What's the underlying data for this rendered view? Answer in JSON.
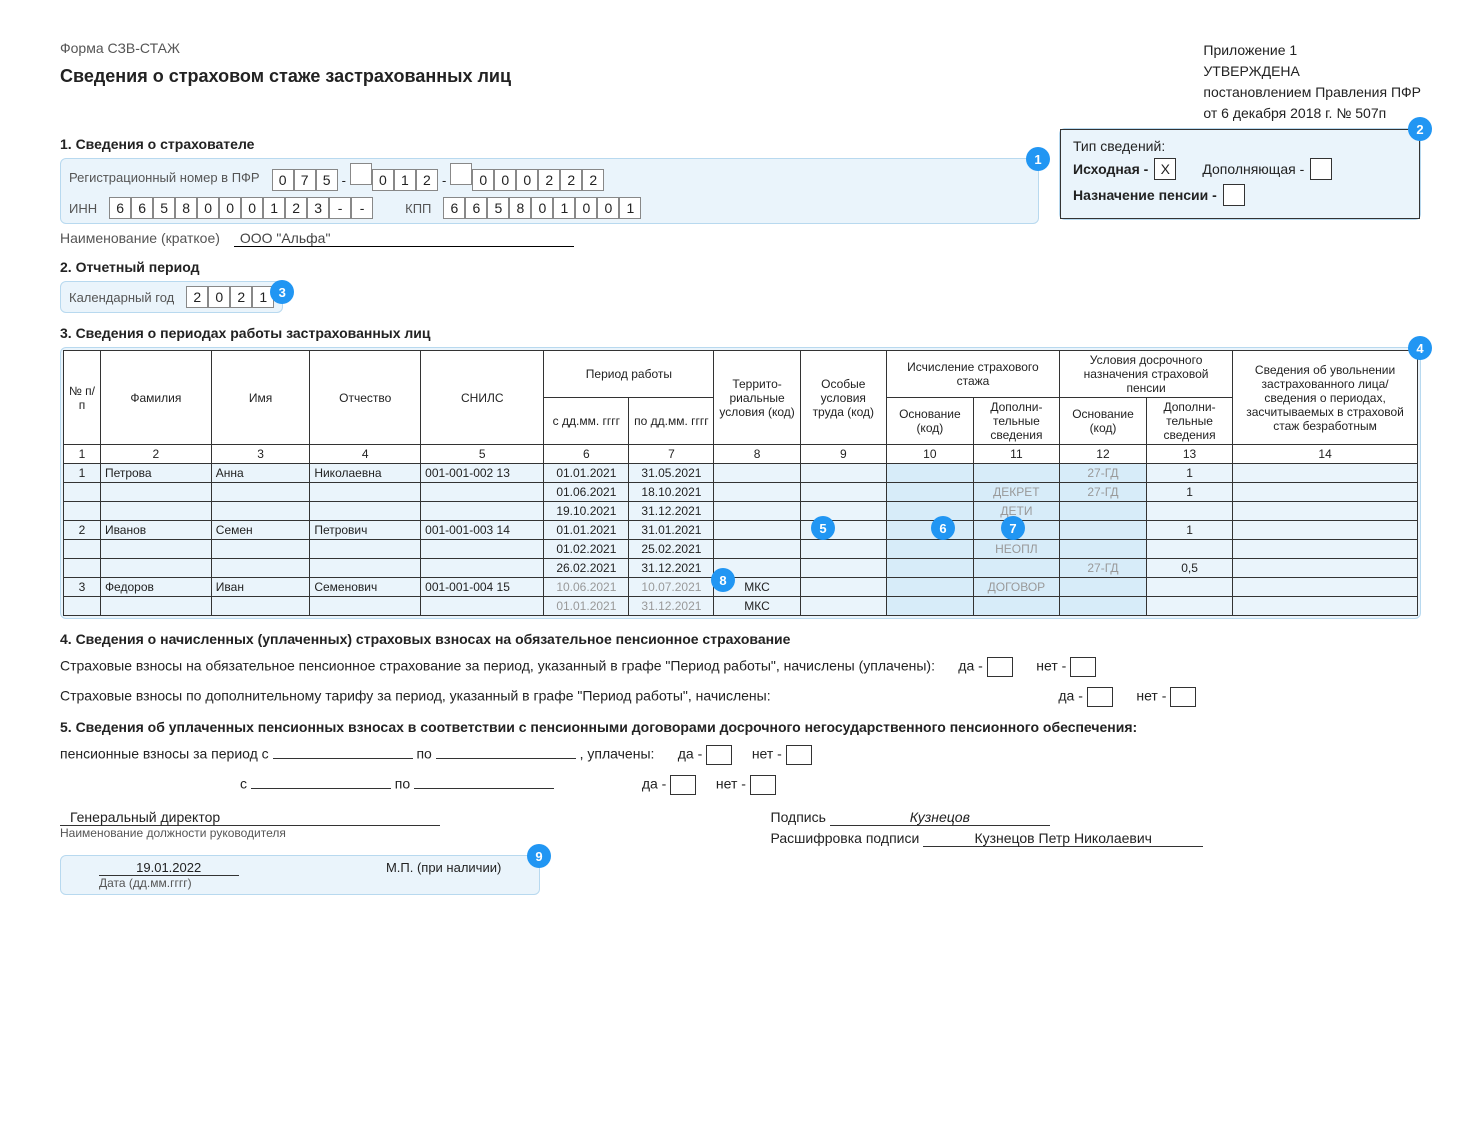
{
  "form_code": "Форма СЗВ-СТАЖ",
  "title": "Сведения о страховом стаже застрахованных лиц",
  "approval": {
    "appendix": "Приложение 1",
    "approved": "УТВЕРЖДЕНА",
    "by": "постановлением Правления ПФР",
    "date": "от 6 декабря 2018 г. № 507п"
  },
  "section1": {
    "title": "1. Сведения о страхователе",
    "reg_label": "Регистрационный номер в ПФР",
    "reg_digits": [
      "0",
      "7",
      "5",
      "",
      "0",
      "1",
      "2",
      "",
      "0",
      "0",
      "0",
      "2",
      "2",
      "2"
    ],
    "inn_label": "ИНН",
    "inn_digits": [
      "6",
      "6",
      "5",
      "8",
      "0",
      "0",
      "0",
      "1",
      "2",
      "3",
      "-",
      "-"
    ],
    "kpp_label": "КПП",
    "kpp_digits": [
      "6",
      "6",
      "5",
      "8",
      "0",
      "1",
      "0",
      "0",
      "1"
    ],
    "org_label": "Наименование (краткое)",
    "org_name": "ООО \"Альфа\""
  },
  "type_box": {
    "title": "Тип сведений:",
    "initial_label": "Исходная -",
    "initial_check": "X",
    "supplement_label": "Дополняющая -",
    "supplement_check": "",
    "pension_label": "Назначение пенсии -",
    "pension_check": ""
  },
  "section2": {
    "title": "2. Отчетный период",
    "year_label": "Календарный год",
    "year_digits": [
      "2",
      "0",
      "2",
      "1"
    ]
  },
  "section3": {
    "title": "3. Сведения о периодах работы застрахованных лиц",
    "headers": {
      "num": "№\nп/п",
      "surname": "Фамилия",
      "name": "Имя",
      "patronymic": "Отчество",
      "snils": "СНИЛС",
      "period": "Период работы",
      "from": "с дд.мм.\nгггг",
      "to": "по дд.мм.\nгггг",
      "terr": "Террито-\nриальные\nусловия\n(код)",
      "labor": "Особые\nусловия\nтруда (код)",
      "calc": "Исчисление страхового\nстажа",
      "basis": "Основание\n(код)",
      "extra": "Дополни-\nтельные\nсведения",
      "early": "Условия досрочного\nназначения страховой пенсии",
      "dismissal": "Сведения об увольнении\nзастрахованного лица/\nсведения о периодах,\nзасчитываемых\nв страховой стаж\nбезработным"
    },
    "colnums": [
      "1",
      "2",
      "3",
      "4",
      "5",
      "6",
      "7",
      "8",
      "9",
      "10",
      "11",
      "12",
      "13",
      "14"
    ],
    "rows": [
      {
        "n": "1",
        "f": "Петрова",
        "i": "Анна",
        "o": "Николаевна",
        "snils": "001-001-002 13",
        "from": "01.01.2021",
        "to": "31.05.2021",
        "terr": "",
        "labor": "",
        "basis": "",
        "extra": "",
        "ebasis": "27-ГД",
        "eextra": "1",
        "dis": ""
      },
      {
        "n": "",
        "f": "",
        "i": "",
        "o": "",
        "snils": "",
        "from": "01.06.2021",
        "to": "18.10.2021",
        "terr": "",
        "labor": "",
        "basis": "",
        "extra": "ДЕКРЕТ",
        "ebasis": "27-ГД",
        "eextra": "1",
        "dis": ""
      },
      {
        "n": "",
        "f": "",
        "i": "",
        "o": "",
        "snils": "",
        "from": "19.10.2021",
        "to": "31.12.2021",
        "terr": "",
        "labor": "",
        "basis": "",
        "extra": "ДЕТИ",
        "ebasis": "",
        "eextra": "",
        "dis": ""
      },
      {
        "n": "2",
        "f": "Иванов",
        "i": "Семен",
        "o": "Петрович",
        "snils": "001-001-003 14",
        "from": "01.01.2021",
        "to": "31.01.2021",
        "terr": "",
        "labor": "",
        "basis": "",
        "extra": "",
        "ebasis": "",
        "eextra": "1",
        "dis": ""
      },
      {
        "n": "",
        "f": "",
        "i": "",
        "o": "",
        "snils": "",
        "from": "01.02.2021",
        "to": "25.02.2021",
        "terr": "",
        "labor": "",
        "basis": "",
        "extra": "НЕОПЛ",
        "ebasis": "",
        "eextra": "",
        "dis": ""
      },
      {
        "n": "",
        "f": "",
        "i": "",
        "o": "",
        "snils": "",
        "from": "26.02.2021",
        "to": "31.12.2021",
        "terr": "",
        "labor": "",
        "basis": "",
        "extra": "",
        "ebasis": "27-ГД",
        "eextra": "0,5",
        "dis": ""
      },
      {
        "n": "3",
        "f": "Федоров",
        "i": "Иван",
        "o": "Семенович",
        "snils": "001-001-004 15",
        "from": "10.06.2021",
        "to": "10.07.2021",
        "terr": "МКС",
        "labor": "",
        "basis": "",
        "extra": "ДОГОВОР",
        "ebasis": "",
        "eextra": "",
        "dis": "",
        "faint": true
      },
      {
        "n": "",
        "f": "",
        "i": "",
        "o": "",
        "snils": "",
        "from": "01.01.2021",
        "to": "31.12.2021",
        "terr": "МКС",
        "labor": "",
        "basis": "",
        "extra": "",
        "ebasis": "",
        "eextra": "",
        "dis": "",
        "faint": true
      }
    ]
  },
  "section4": {
    "title": "4. Сведения о начисленных (уплаченных) страховых взносах на обязательное пенсионное страхование",
    "line1": "Страховые взносы на обязательное пенсионное страхование за период, указанный в графе \"Период работы\", начислены (уплачены):",
    "line2": "Страховые взносы по дополнительному тарифу за период, указанный в графе \"Период работы\", начислены:",
    "yes": "да -",
    "no": "нет -"
  },
  "section5": {
    "title": "5. Сведения об уплаченных пенсионных взносах в соответствии с пенсионными договорами досрочного негосударственного пенсионного обеспечения:",
    "period_label": "пенсионные взносы за период с",
    "to": "по",
    "paid": ", уплачены:",
    "from2": "с",
    "yes": "да -",
    "no": "нет -"
  },
  "signatures": {
    "position": "Генеральный директор",
    "position_label": "Наименование должности руководителя",
    "sign_label": "Подпись",
    "sign_value": "Кузнецов",
    "decode_label": "Расшифровка подписи",
    "decode_value": "Кузнецов Петр Николаевич",
    "date": "19.01.2022",
    "date_label": "Дата (дд.мм.гггг)",
    "mp": "М.П. (при наличии)"
  },
  "callouts": [
    "1",
    "2",
    "3",
    "4",
    "5",
    "6",
    "7",
    "8",
    "9"
  ],
  "colors": {
    "highlight_bg": "#eaf4fb",
    "highlight_border": "#b8d9ef",
    "callout_bg": "#2196f3",
    "text": "#222222",
    "muted": "#999999",
    "col_highlight": "#d7ecf9"
  }
}
